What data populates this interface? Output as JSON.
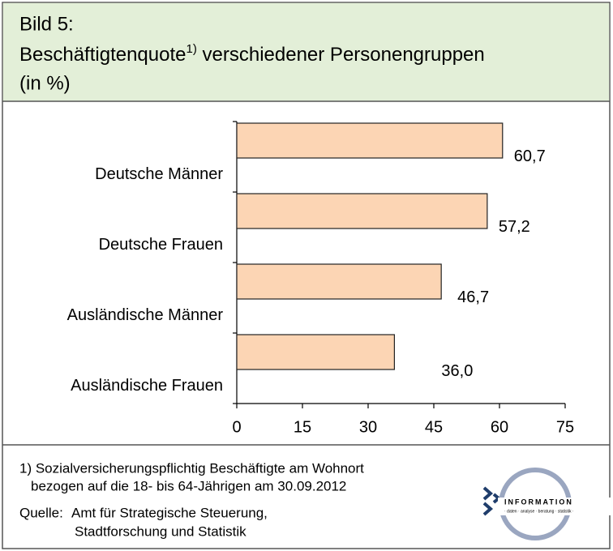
{
  "header": {
    "line1": "Bild 5:",
    "title_main": "Beschäftigtenquote",
    "title_sup": "1)",
    "title_rest": " verschiedener Personengruppen",
    "line3": "(in %)"
  },
  "chart_data": {
    "type": "bar",
    "orientation": "horizontal",
    "categories": [
      "Deutsche Männer",
      "Deutsche Frauen",
      "Ausländische Männer",
      "Ausländische Frauen"
    ],
    "values": [
      60.7,
      57.2,
      46.7,
      36.0
    ],
    "value_labels": [
      "60,7",
      "57,2",
      "46,7",
      "36,0"
    ],
    "color": "#fcd5b4",
    "xlim": [
      0,
      75
    ],
    "xticks": [
      0,
      15,
      30,
      45,
      60,
      75
    ],
    "grid": false
  },
  "footer": {
    "note_line1": "1) Sozialversicherungspflichtig Beschäftigte am Wohnort",
    "note_line2": "bezogen auf die 18- bis 64-Jährigen am 30.09.2012",
    "source_label": "Quelle:",
    "source_line1": "Amt für Strategische Steuerung,",
    "source_line2": "Stadtforschung und Statistik"
  },
  "logo": {
    "name": "INFORMATION",
    "tagline": "· daten · analyse · beratung · statistik ·"
  }
}
